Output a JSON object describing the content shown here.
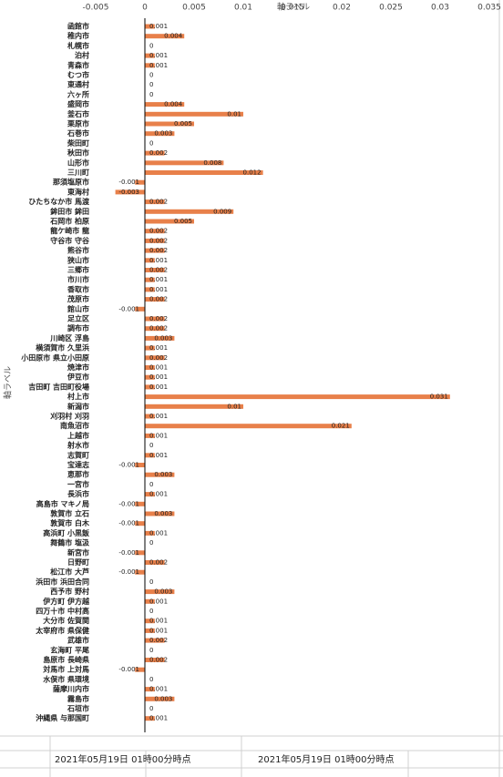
{
  "chart_data": {
    "type": "bar",
    "orientation": "horizontal",
    "x_axis_title": "軸ラベル",
    "y_axis_title": "軸ラベル",
    "categories": [
      "函館市",
      "稚内市",
      "札幌市",
      "泊村",
      "青森市",
      "むつ市",
      "東通村",
      "六ヶ所",
      "盛岡市",
      "釜石市",
      "栗原市",
      "石巻市",
      "柴田町",
      "秋田市",
      "山形市",
      "三川町",
      "那須塩原市",
      "東海村",
      "ひたちなか市 馬渡",
      "鉾田市 鉾田",
      "石岡市 柏原",
      "龍ケ崎市 龍",
      "守谷市 守谷",
      "熊谷市",
      "狭山市",
      "三郷市",
      "市川市",
      "香取市",
      "茂原市",
      "館山市",
      "足立区",
      "調布市",
      "川崎区 浮島",
      "横須賀市 久里浜",
      "小田原市 県立小田原",
      "焼津市",
      "伊豆市",
      "吉田町 吉田町役場",
      "村上市",
      "新潟市",
      "刈羽村 刈羽",
      "南魚沼市",
      "上越市",
      "射水市",
      "志賀町",
      "宝達志",
      "恵那市",
      "一宮市",
      "長浜市",
      "高島市 マキノ局",
      "敦賀市 立石",
      "敦賀市 白木",
      "高浜町 小黒飯",
      "舞鶴市 塩汲",
      "新宮市",
      "日野町",
      "松江市 大芦",
      "浜田市 浜田合同",
      "西予市 野村",
      "伊方町 伊方越",
      "四万十市 中村高",
      "大分市 佐賀関",
      "太宰府市 県保健",
      "武雄市",
      "玄海町 平尾",
      "島原市 長崎県",
      "対馬市 上対馬",
      "水俣市 県環境",
      "薩摩川内市",
      "霧島市",
      "石垣市",
      "沖縄県 与那国町"
    ],
    "values": [
      0.001,
      0.004,
      0,
      0.001,
      0.001,
      0,
      0,
      0,
      0.004,
      0.01,
      0.005,
      0.003,
      0,
      0.002,
      0.008,
      0.012,
      -0.001,
      -0.003,
      0.002,
      0.009,
      0.005,
      0.002,
      0.002,
      0.002,
      0.001,
      0.002,
      0.001,
      0.001,
      0.002,
      -0.001,
      0.002,
      0.002,
      0.003,
      0.001,
      0.002,
      0.001,
      0.001,
      0.001,
      0.031,
      0.01,
      0.001,
      0.021,
      0.001,
      0,
      0.001,
      -0.001,
      0.003,
      0,
      0.001,
      -0.001,
      0.003,
      -0.001,
      0.001,
      0,
      -0.001,
      0.002,
      -0.001,
      0,
      0.003,
      0.001,
      0,
      0.001,
      0.001,
      0.002,
      0,
      0.002,
      -0.001,
      0,
      0.001,
      0.003,
      0,
      0.001
    ],
    "color": "#e8804a",
    "xlim": [
      -0.005,
      0.035
    ],
    "xticks": [
      -0.005,
      0,
      0.005,
      0.01,
      0.015,
      0.02,
      0.025,
      0.03,
      0.035
    ],
    "grid": false,
    "footer_cells": [
      "2021年05月19日 01時00分時点",
      "2021年05月19日 01時00分時点"
    ]
  }
}
